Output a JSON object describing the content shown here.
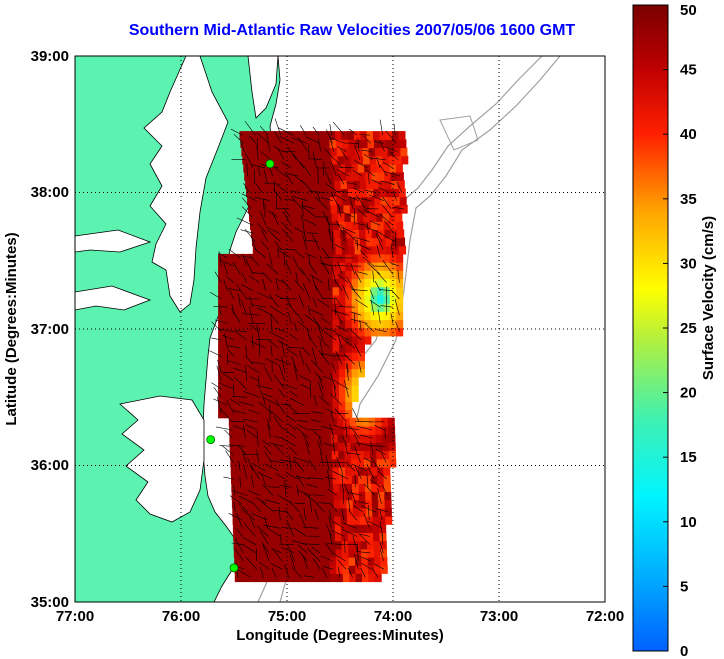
{
  "chart_data": {
    "type": "heatmap",
    "title": "Southern Mid-Atlantic Raw Velocities 2007/05/06 1600 GMT",
    "xlabel": "Longitude (Degrees:Minutes)",
    "ylabel": "Latitude (Degrees:Minutes)",
    "colorbar_label": "Surface Velocity (cm/s)",
    "xlim": [
      -77,
      -72
    ],
    "ylim": [
      35,
      39
    ],
    "x_ticks": [
      {
        "value": -77,
        "label": "77:00"
      },
      {
        "value": -76,
        "label": "76:00"
      },
      {
        "value": -75,
        "label": "75:00"
      },
      {
        "value": -74,
        "label": "74:00"
      },
      {
        "value": -73,
        "label": "73:00"
      },
      {
        "value": -72,
        "label": "72:00"
      }
    ],
    "y_ticks": [
      {
        "value": 35,
        "label": "35:00"
      },
      {
        "value": 36,
        "label": "36:00"
      },
      {
        "value": 37,
        "label": "37:00"
      },
      {
        "value": 38,
        "label": "38:00"
      },
      {
        "value": 39,
        "label": "39:00"
      }
    ],
    "colorbar_ticks": [
      "0",
      "5",
      "10",
      "15",
      "20",
      "25",
      "30",
      "35",
      "40",
      "45",
      "50"
    ],
    "colorbar_range": [
      0,
      50
    ],
    "grid": "dotted",
    "colors": {
      "land": "#5cf2b0",
      "velocity_max": "#800000",
      "site_marker": "#00ff00",
      "bathymetry": "#a0a0a0",
      "title": "#0000ff"
    },
    "radar_sites": [
      {
        "lon": -75.16,
        "lat": 38.21
      },
      {
        "lon": -75.72,
        "lat": 36.19
      },
      {
        "lon": -75.5,
        "lat": 35.25
      }
    ],
    "velocity_field_lon_range": [
      -75.7,
      -73.9
    ],
    "velocity_field_lat_range": [
      35.15,
      38.45
    ]
  }
}
